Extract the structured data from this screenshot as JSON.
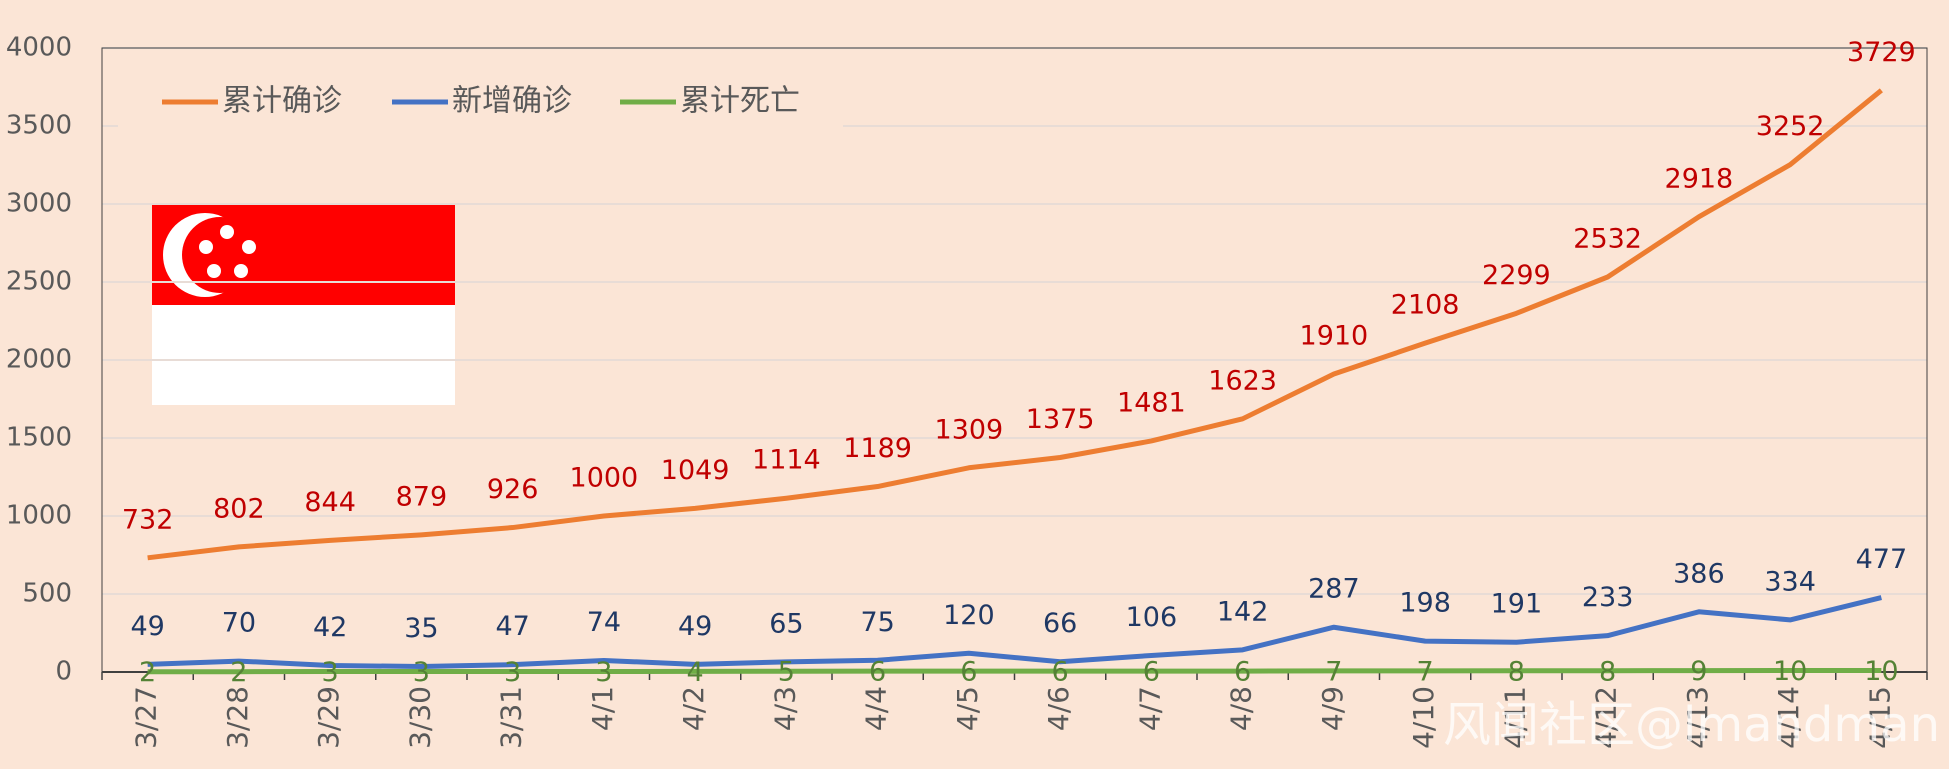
{
  "chart_data": {
    "type": "line",
    "categories": [
      "3/27",
      "3/28",
      "3/29",
      "3/30",
      "3/31",
      "4/1",
      "4/2",
      "4/3",
      "4/4",
      "4/5",
      "4/6",
      "4/7",
      "4/8",
      "4/9",
      "4/10",
      "4/11",
      "4/12",
      "4/13",
      "4/14",
      "4/15"
    ],
    "series": [
      {
        "name": "累计确诊",
        "color": "#ed7d31",
        "label_color": "#c00000",
        "values": [
          732,
          802,
          844,
          879,
          926,
          1000,
          1049,
          1114,
          1189,
          1309,
          1375,
          1481,
          1623,
          1910,
          2108,
          2299,
          2532,
          2918,
          3252,
          3729
        ]
      },
      {
        "name": "新增确诊",
        "color": "#4472c4",
        "label_color": "#1f3864",
        "values": [
          49,
          70,
          42,
          35,
          47,
          74,
          49,
          65,
          75,
          120,
          66,
          106,
          142,
          287,
          198,
          191,
          233,
          386,
          334,
          477
        ]
      },
      {
        "name": "累计死亡",
        "color": "#70ad47",
        "label_color": "#548235",
        "values": [
          2,
          2,
          3,
          3,
          3,
          3,
          4,
          5,
          6,
          6,
          6,
          6,
          6,
          7,
          7,
          8,
          8,
          9,
          10,
          10
        ]
      }
    ],
    "ylim": [
      0,
      4000
    ],
    "yticks": [
      0,
      500,
      1000,
      1500,
      2000,
      2500,
      3000,
      3500,
      4000
    ],
    "grid": true,
    "legend": "top-left",
    "watermark": "风闻社区@lmandman"
  }
}
